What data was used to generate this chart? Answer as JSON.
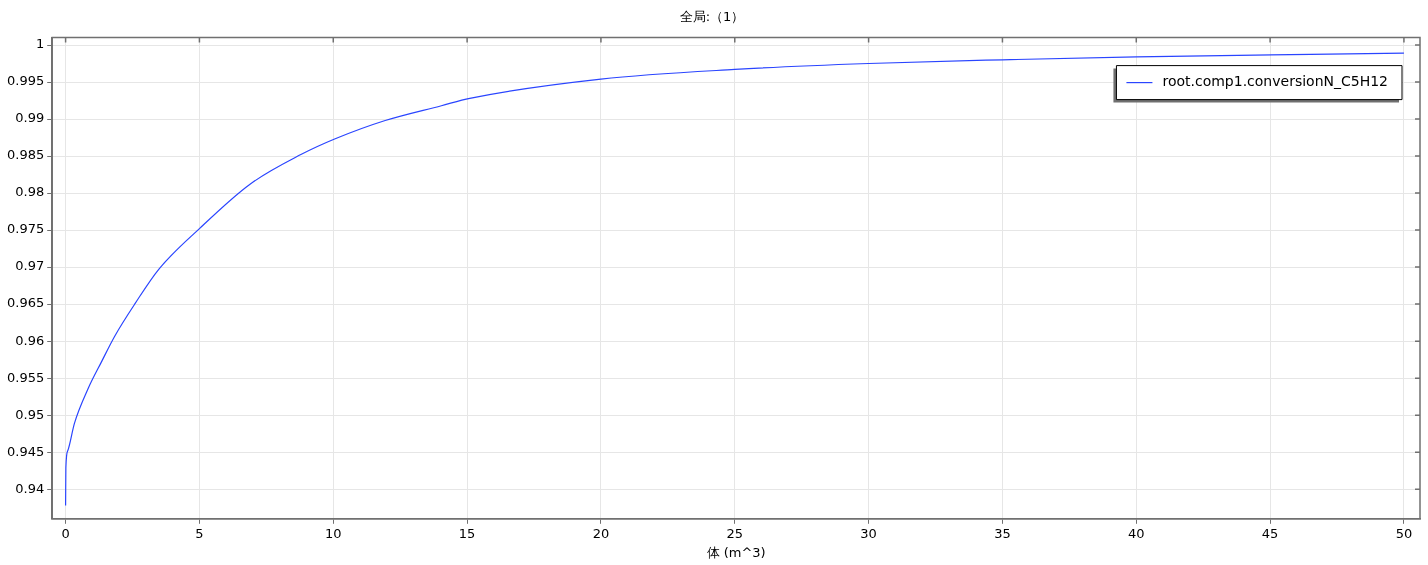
{
  "chart_data": {
    "type": "line",
    "title": "全局:（1）",
    "xlabel": "体 (m^3)",
    "xlim": [
      -0.5,
      50.6
    ],
    "xticks": [
      0,
      5,
      10,
      15,
      20,
      25,
      30,
      35,
      40,
      45,
      50
    ],
    "ylim": [
      0.936,
      1.001
    ],
    "yticks": [
      0.94,
      0.945,
      0.95,
      0.955,
      0.96,
      0.965,
      0.97,
      0.975,
      0.98,
      0.985,
      0.99,
      0.995,
      1
    ],
    "grid": true,
    "legend": "top right",
    "marker": "none",
    "line_style": "solid",
    "series": [
      {
        "name": "root.comp1.conversionN_C5H12",
        "color": "#2a45ff",
        "x": [
          0,
          0.01,
          0.08,
          0.33,
          0.83,
          1.34,
          1.84,
          2.6,
          3.48,
          5,
          6.89,
          8.79,
          10.05,
          11.94,
          14.04,
          15.1,
          20,
          25,
          30,
          35,
          40,
          50
        ],
        "values": [
          0.9378,
          0.9429,
          0.9452,
          0.9489,
          0.9535,
          0.9572,
          0.9607,
          0.9651,
          0.9697,
          0.9752,
          0.9812,
          0.9852,
          0.9873,
          0.9898,
          0.9918,
          0.9928,
          0.9954,
          0.9967,
          0.9975,
          0.998,
          0.9984,
          0.9989
        ]
      }
    ]
  }
}
